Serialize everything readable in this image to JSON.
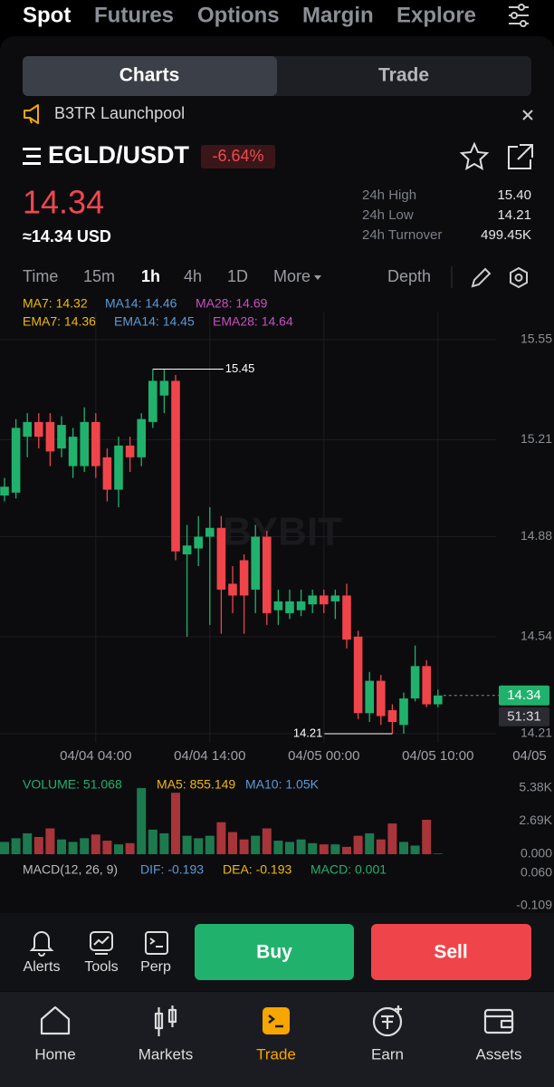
{
  "top_tabs": [
    "Spot",
    "Futures",
    "Options",
    "Margin",
    "Explore"
  ],
  "segment": [
    "Charts",
    "Trade"
  ],
  "banner": "B3TR Launchpool",
  "pair": "EGLD/USDT",
  "change": "-6.64%",
  "price": "14.34",
  "price_usd": "≈14.34 USD",
  "stats": [
    {
      "label": "24h High",
      "value": "15.40"
    },
    {
      "label": "24h Low",
      "value": "14.21"
    },
    {
      "label": "24h Turnover",
      "value": "499.45K"
    }
  ],
  "intervals": [
    "Time",
    "15m",
    "1h",
    "4h",
    "1D",
    "More"
  ],
  "depth": "Depth",
  "ma_legend": [
    "MA7: 14.32",
    "MA14: 14.46",
    "MA28: 14.69"
  ],
  "ema_legend": [
    "EMA7: 14.36",
    "EMA14: 14.45",
    "EMA28: 14.64"
  ],
  "watermark": "BYBIT",
  "chart_data": [
    {
      "type": "candlestick",
      "categories": [
        null,
        null,
        null,
        null,
        null,
        null,
        null,
        null,
        "04/04 04:00",
        null,
        null,
        null,
        null,
        null,
        null,
        null,
        null,
        null,
        "04/04 14:00",
        null,
        null,
        null,
        null,
        null,
        null,
        null,
        null,
        null,
        "04/05 00:00",
        null,
        null,
        null,
        null,
        null,
        null,
        null,
        null,
        null,
        "04/05 10:00"
      ],
      "x_edge_label": "04/05",
      "open": [
        15.02,
        15.03,
        15.22,
        15.27,
        15.27,
        15.18,
        15.12,
        15.12,
        15.27,
        15.15,
        15.04,
        15.19,
        15.15,
        15.27,
        15.36,
        15.41,
        14.82,
        14.84,
        14.88,
        14.91,
        14.72,
        14.8,
        14.7,
        14.88,
        14.63,
        14.62,
        14.63,
        14.65,
        14.68,
        14.66,
        14.68,
        14.54,
        14.28,
        14.39,
        14.29,
        14.24,
        14.33,
        14.44,
        14.31
      ],
      "high": [
        15.08,
        15.28,
        15.3,
        15.3,
        15.3,
        15.29,
        15.25,
        15.32,
        15.3,
        15.18,
        15.22,
        15.22,
        15.3,
        15.45,
        15.45,
        15.43,
        14.92,
        14.95,
        14.98,
        14.95,
        14.78,
        14.82,
        14.92,
        14.9,
        14.7,
        14.7,
        14.7,
        14.7,
        14.7,
        14.7,
        14.72,
        14.56,
        14.42,
        14.41,
        14.31,
        14.35,
        14.51,
        14.46,
        14.36
      ],
      "low": [
        15.0,
        15.01,
        15.15,
        15.18,
        15.12,
        15.15,
        15.08,
        15.1,
        15.08,
        15.0,
        14.98,
        15.1,
        15.12,
        15.25,
        15.3,
        14.8,
        14.54,
        14.78,
        14.58,
        14.55,
        14.62,
        14.55,
        14.62,
        14.58,
        14.58,
        14.6,
        14.61,
        14.62,
        14.62,
        14.6,
        14.5,
        14.26,
        14.25,
        14.24,
        14.21,
        14.21,
        14.32,
        14.3,
        14.3
      ],
      "close": [
        15.05,
        15.25,
        15.27,
        15.22,
        15.17,
        15.26,
        15.22,
        15.27,
        15.12,
        15.04,
        15.19,
        15.15,
        15.28,
        15.41,
        15.41,
        14.83,
        14.85,
        14.88,
        14.91,
        14.7,
        14.68,
        14.68,
        14.88,
        14.62,
        14.66,
        14.66,
        14.66,
        14.68,
        14.65,
        14.68,
        14.53,
        14.28,
        14.39,
        14.27,
        14.25,
        14.33,
        14.44,
        14.31,
        14.34
      ],
      "up_color": "#20b26c",
      "down_color": "#ef454a",
      "series": [
        {
          "color": "#f0b90b",
          "values": [
            15.1,
            15.14,
            15.18,
            15.2,
            15.22,
            15.22,
            15.21,
            15.2,
            15.2,
            15.18,
            15.17,
            15.17,
            15.2,
            15.24,
            15.3,
            15.2,
            15.08,
            14.98,
            14.92,
            14.85,
            14.8,
            14.76,
            14.74,
            14.72,
            14.7,
            14.68,
            14.67,
            14.67,
            14.66,
            14.66,
            14.63,
            14.57,
            14.5,
            14.44,
            14.38,
            14.35,
            14.33,
            14.32,
            14.32
          ]
        },
        {
          "color": "#5b9bd5",
          "values": [
            15.2,
            15.21,
            15.21,
            15.22,
            15.21,
            15.2,
            15.2,
            15.2,
            15.2,
            15.19,
            15.18,
            15.18,
            15.19,
            15.21,
            15.23,
            15.18,
            15.12,
            15.07,
            15.03,
            14.99,
            14.95,
            14.92,
            14.89,
            14.86,
            14.83,
            14.8,
            14.78,
            14.76,
            14.74,
            14.72,
            14.7,
            14.66,
            14.62,
            14.58,
            14.54,
            14.51,
            14.48,
            14.47,
            14.46
          ]
        },
        {
          "color": "#c850c0",
          "values": [
            15.46,
            15.44,
            15.42,
            15.41,
            15.4,
            15.38,
            15.37,
            15.36,
            15.36,
            15.35,
            15.34,
            15.34,
            15.33,
            15.33,
            15.32,
            15.29,
            15.26,
            15.23,
            15.2,
            15.17,
            15.14,
            15.11,
            15.09,
            15.06,
            15.03,
            15.01,
            14.99,
            14.97,
            14.95,
            14.93,
            14.9,
            14.87,
            14.84,
            14.81,
            14.78,
            14.75,
            14.73,
            14.71,
            14.69
          ]
        }
      ],
      "ylim": [
        14.21,
        15.55
      ],
      "yticks": [
        15.55,
        15.21,
        14.88,
        14.54,
        14.21
      ],
      "max_label": 15.45,
      "min_label": 14.21,
      "last_price": 14.34,
      "countdown": "51:31",
      "grid": true
    },
    {
      "type": "bar",
      "legend": [
        "VOLUME: 51.068",
        "MA5: 855.149",
        "MA10: 1.05K"
      ],
      "values": [
        1000,
        1300,
        1700,
        1400,
        2100,
        1200,
        1000,
        1300,
        1600,
        1100,
        800,
        900,
        5380,
        2000,
        1700,
        5000,
        1500,
        1300,
        1500,
        2600,
        1800,
        1200,
        1500,
        2100,
        1100,
        1000,
        1200,
        900,
        800,
        800,
        600,
        1500,
        1700,
        1200,
        2500,
        1000,
        700,
        2800,
        51.068
      ],
      "ylim": [
        0,
        5380
      ],
      "yticks": [
        {
          "value": 5380,
          "label": "5.38K"
        },
        {
          "value": 2690,
          "label": "2.69K"
        },
        {
          "value": 0,
          "label": "0.000"
        }
      ]
    },
    {
      "type": "macd",
      "legend": [
        "MACD(12, 26, 9)",
        "DIF: -0.193",
        "DEA: -0.193",
        "MACD: 0.001"
      ],
      "ylim": [
        -0.147,
        0.102
      ],
      "yticks": [
        {
          "value": 0.06,
          "label": "0.060"
        },
        -0.109
      ]
    }
  ],
  "actions": [
    "Alerts",
    "Tools",
    "Perp"
  ],
  "buy": "Buy",
  "sell": "Sell",
  "nav": [
    "Home",
    "Markets",
    "Trade",
    "Earn",
    "Assets"
  ]
}
